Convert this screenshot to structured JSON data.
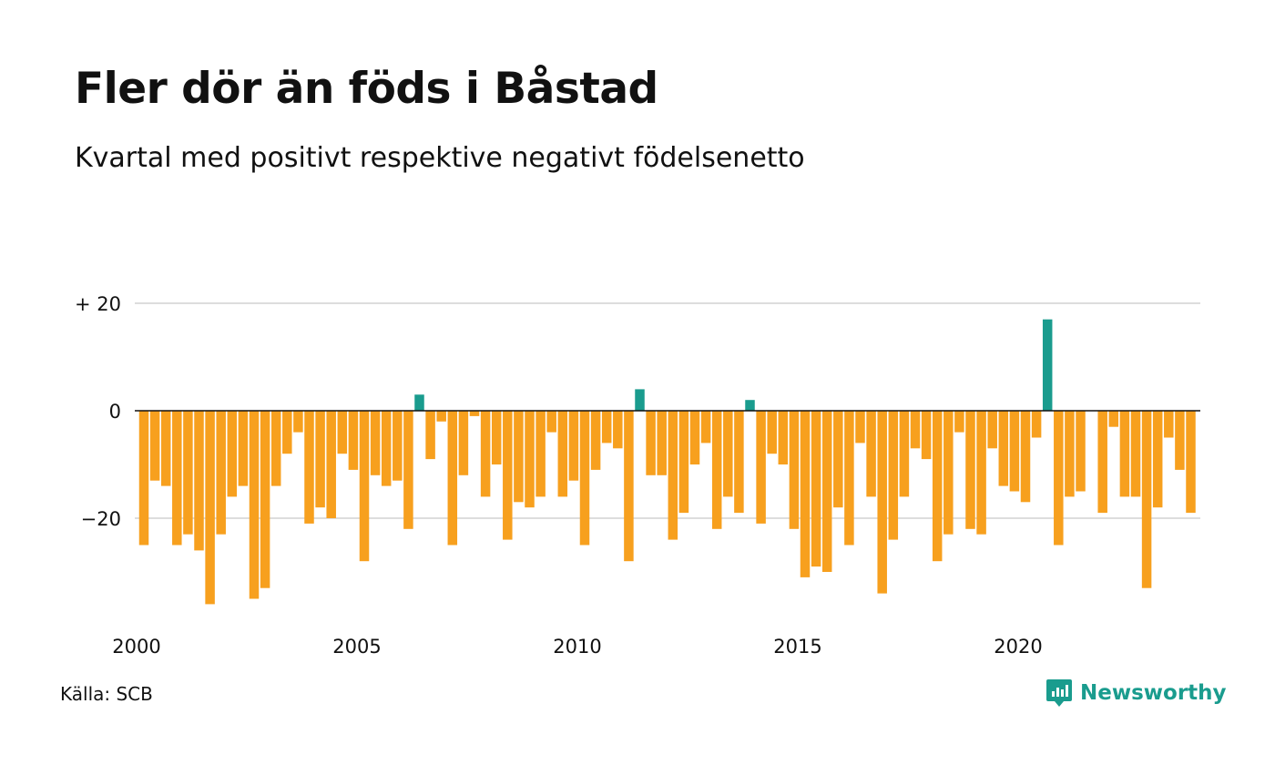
{
  "title": "Fler dör än föds i Båstad",
  "subtitle": "Kvartal med positivt respektive negativt födelsenetto",
  "source": "Källa: SCB",
  "brand": "Newsworthy",
  "colors": {
    "positive": "#1a9c8e",
    "negative": "#f7a01e",
    "grid": "#dddddd",
    "brand": "#1a9c8e"
  },
  "chart_data": {
    "type": "bar",
    "x_start": "2000 Q1",
    "frequency": "quarterly",
    "values": [
      -25,
      -13,
      -14,
      -25,
      -23,
      -26,
      -36,
      -23,
      -16,
      -14,
      -35,
      -33,
      -14,
      -8,
      -4,
      -21,
      -18,
      -20,
      -8,
      -11,
      -28,
      -12,
      -14,
      -13,
      -22,
      3,
      -9,
      -2,
      -25,
      -12,
      -1,
      -16,
      -10,
      -24,
      -17,
      -18,
      -16,
      -4,
      -16,
      -13,
      -25,
      -11,
      -6,
      -7,
      -28,
      4,
      -12,
      -12,
      -24,
      -19,
      -10,
      -6,
      -22,
      -16,
      -19,
      2,
      -21,
      -8,
      -10,
      -22,
      -31,
      -29,
      -30,
      -18,
      -25,
      -6,
      -16,
      -34,
      -24,
      -16,
      -7,
      -9,
      -28,
      -23,
      -4,
      -22,
      -23,
      -7,
      -14,
      -15,
      -17,
      -5,
      17,
      -25,
      -16,
      -15,
      0,
      -19,
      -3,
      -16,
      -16,
      -33,
      -18,
      -5,
      -11,
      -19
    ],
    "x_ticks": [
      "2000",
      "2005",
      "2010",
      "2015",
      "2020"
    ],
    "y_ticks": [
      "+ 20",
      "0",
      "−20"
    ],
    "ylim": [
      -40,
      20
    ],
    "grid": true
  }
}
